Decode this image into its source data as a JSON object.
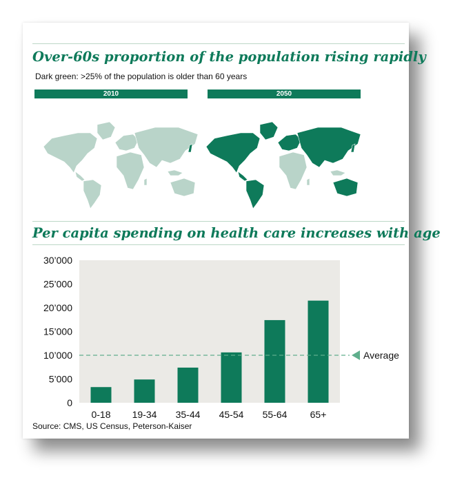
{
  "header": {
    "title": "Over-60s proportion of the population rising rapidly",
    "subtitle": "Dark green: >25% of the population is older than 60 years"
  },
  "maps": [
    {
      "label": "2010"
    },
    {
      "label": "2050"
    }
  ],
  "colors": {
    "accent": "#0e7a5a",
    "map_light": "#b9d4c9",
    "chart_background": "#ebeae6",
    "bar": "#0e7a5a",
    "average_line": "#5fae8c"
  },
  "chart_data": {
    "type": "bar",
    "title": "Per capita spending on health care increases with age",
    "categories": [
      "0-18",
      "19-34",
      "35-44",
      "45-54",
      "55-64",
      "65+"
    ],
    "values": [
      3300,
      4900,
      7400,
      10600,
      17400,
      21500
    ],
    "ylim": [
      0,
      30000
    ],
    "yticks": [
      0,
      5000,
      10000,
      15000,
      20000,
      25000,
      30000
    ],
    "ytick_labels": [
      "0",
      "5’000",
      "10’000",
      "15’000",
      "20’000",
      "25’000",
      "30’000"
    ],
    "reference_line": {
      "value": 10000,
      "label": "Average"
    },
    "grid": false
  },
  "footer": {
    "source": "Source: CMS, US Census, Peterson-Kaiser"
  }
}
